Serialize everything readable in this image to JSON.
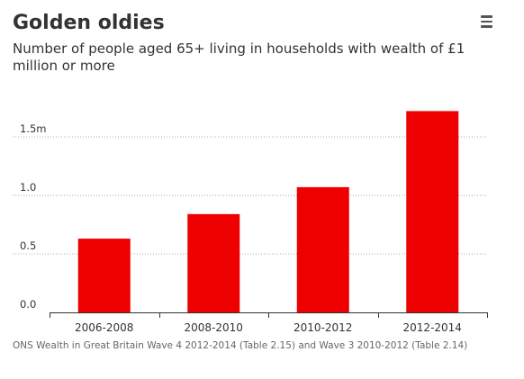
{
  "header": {
    "title": "Golden oldies",
    "subtitle": "Number of people aged 65+ living in households with wealth of £1 million or more"
  },
  "menu": {
    "icon": "hamburger-menu-icon"
  },
  "footer": {
    "source": "ONS Wealth in Great Britain Wave 4 2012-2014 (Table 2.15) and Wave 3 2010-2012 (Table 2.14)"
  },
  "colors": {
    "bar": "#ee0000",
    "gridline": "#aaaaaa",
    "text": "#333333"
  },
  "chart_data": {
    "type": "bar",
    "title": "Golden oldies",
    "subtitle": "Number of people aged 65+ living in households with wealth of £1 million or more",
    "xlabel": "",
    "ylabel": "",
    "categories": [
      "2006-2008",
      "2008-2010",
      "2010-2012",
      "2012-2014"
    ],
    "values": [
      0.63,
      0.84,
      1.07,
      1.72
    ],
    "yticks": [
      0.0,
      0.5,
      1.0,
      1.5
    ],
    "ytick_labels": [
      "0.0",
      "0.5",
      "1.0",
      "1.5m"
    ],
    "ylim": [
      0,
      1.8
    ],
    "grid": "horizontal dotted",
    "legend": "none"
  }
}
